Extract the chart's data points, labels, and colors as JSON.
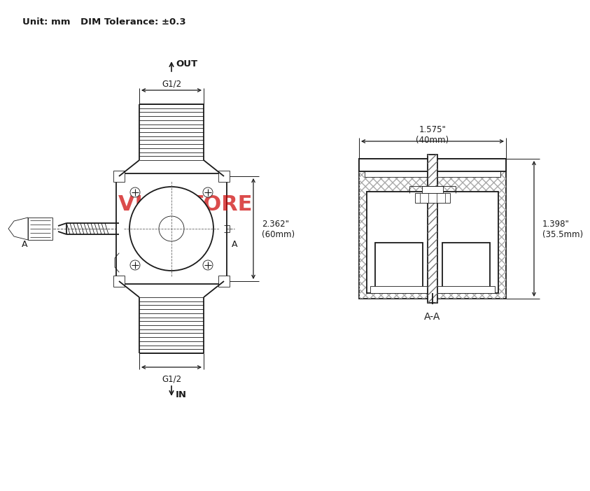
{
  "bg_color": "#ffffff",
  "line_color": "#1a1a1a",
  "watermark_color": "#cc0000",
  "watermark_text": "VIC  STORE",
  "header_text1": "Unit: mm",
  "header_text2": "DIM Tolerance: ±0.3",
  "dim_top": "G1/2",
  "dim_bottom": "G1/2",
  "dim_right_text": "2.362\"\n(60mm)",
  "dim_aa_width": "1.575\"\n(40mm)",
  "dim_aa_height": "1.398\"\n(35.5mm)",
  "label_out": "OUT",
  "label_in": "IN",
  "label_aa": "A-A",
  "label_a_left": "A",
  "label_a_right": "A"
}
